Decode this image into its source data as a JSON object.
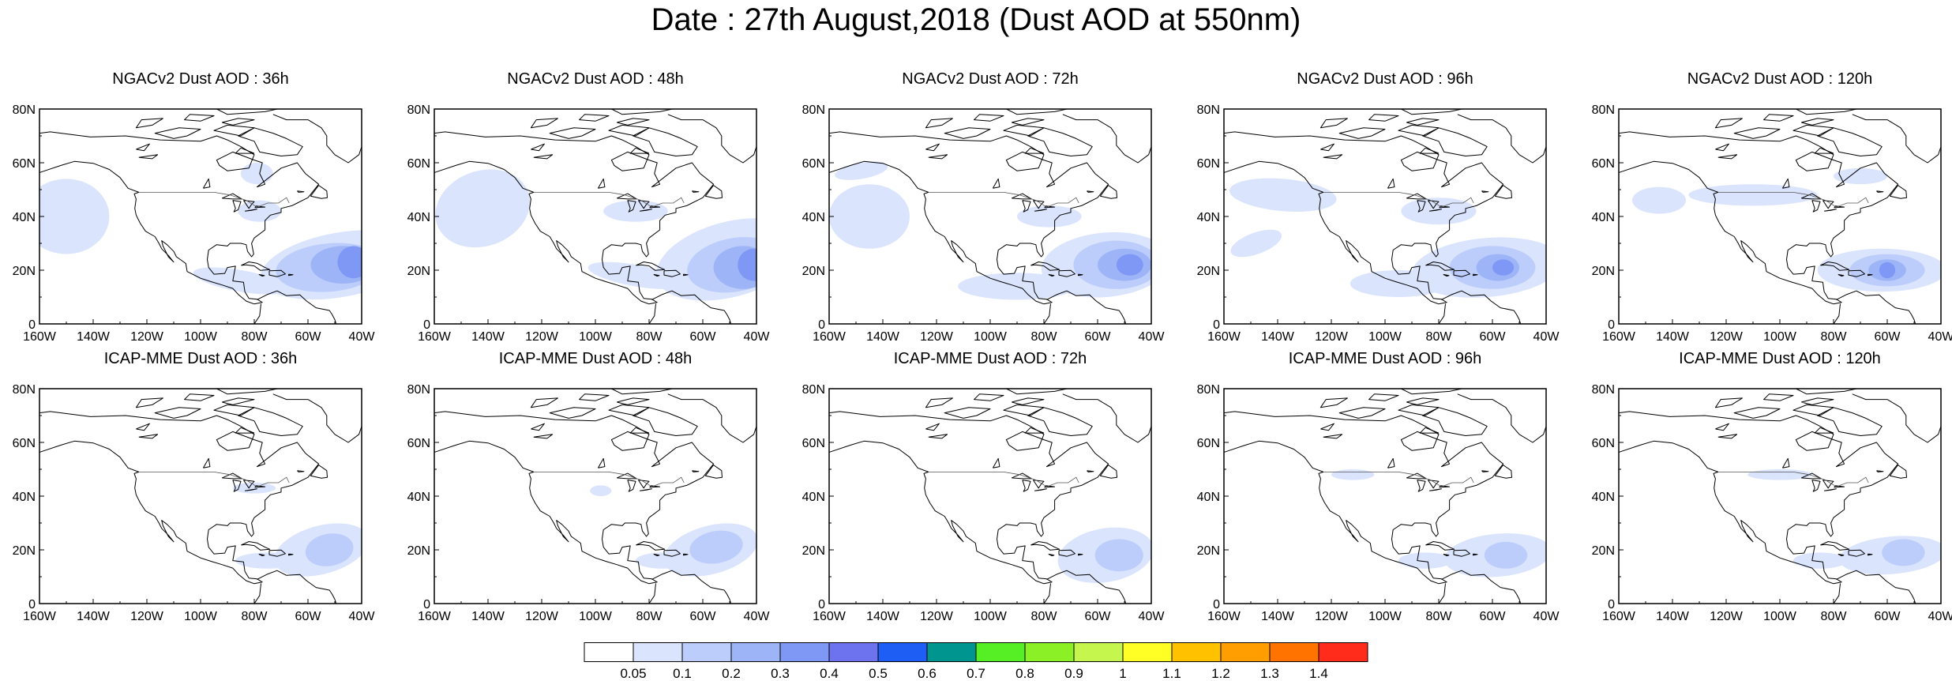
{
  "title": "Date : 27th August,2018 (Dust AOD at 550nm)",
  "axes": {
    "lat_ticks": [
      "80N",
      "60N",
      "40N",
      "20N",
      "0"
    ],
    "lon_ticks": [
      "160W",
      "140W",
      "120W",
      "100W",
      "80W",
      "60W",
      "40W"
    ],
    "lon_range": [
      -160,
      -40
    ],
    "lat_range": [
      0,
      80
    ]
  },
  "colorbar": {
    "colors": [
      "#ffffff",
      "#dbe4fd",
      "#bccdfb",
      "#9db5f7",
      "#8098f5",
      "#6d72ee",
      "#1f5ef5",
      "#00958f",
      "#56ee25",
      "#8cf026",
      "#c4f64e",
      "#ffff26",
      "#ffc100",
      "#ff9e00",
      "#ff7400",
      "#ff2b1b"
    ],
    "labels": [
      "0.05",
      "0.1",
      "0.2",
      "0.3",
      "0.4",
      "0.5",
      "0.6",
      "0.7",
      "0.8",
      "0.9",
      "1",
      "1.1",
      "1.2",
      "1.3",
      "1.4"
    ]
  },
  "panels": [
    {
      "title": "NGACv2 Dust AOD : 36h",
      "model": "NGACv2",
      "hour": 36,
      "plumes": [
        {
          "lon": -48,
          "lat": 22,
          "rx": 30,
          "ry": 12,
          "rot": 10,
          "level": 1
        },
        {
          "lon": -52,
          "lat": 21,
          "rx": 20,
          "ry": 9,
          "rot": 5,
          "level": 2
        },
        {
          "lon": -47,
          "lat": 22,
          "rx": 12,
          "ry": 7,
          "rot": 0,
          "level": 3
        },
        {
          "lon": -43,
          "lat": 23,
          "rx": 6,
          "ry": 6,
          "rot": 0,
          "level": 4
        },
        {
          "lon": -85,
          "lat": 16,
          "rx": 18,
          "ry": 4,
          "rot": -10,
          "level": 1
        },
        {
          "lon": -150,
          "lat": 40,
          "rx": 16,
          "ry": 14,
          "rot": 0,
          "level": 1
        },
        {
          "lon": -78,
          "lat": 42,
          "rx": 8,
          "ry": 4,
          "rot": 0,
          "level": 1
        },
        {
          "lon": -79,
          "lat": 56,
          "rx": 6,
          "ry": 4,
          "rot": 0,
          "level": 1
        }
      ]
    },
    {
      "title": "NGACv2 Dust AOD : 48h",
      "model": "NGACv2",
      "hour": 48,
      "plumes": [
        {
          "lon": -50,
          "lat": 24,
          "rx": 28,
          "ry": 14,
          "rot": 15,
          "level": 1
        },
        {
          "lon": -48,
          "lat": 22,
          "rx": 18,
          "ry": 10,
          "rot": 10,
          "level": 2
        },
        {
          "lon": -45,
          "lat": 21,
          "rx": 11,
          "ry": 8,
          "rot": 0,
          "level": 3
        },
        {
          "lon": -41,
          "lat": 22,
          "rx": 6,
          "ry": 6,
          "rot": 0,
          "level": 4
        },
        {
          "lon": -85,
          "lat": 18,
          "rx": 18,
          "ry": 4,
          "rot": -10,
          "level": 1
        },
        {
          "lon": -142,
          "lat": 43,
          "rx": 18,
          "ry": 14,
          "rot": 20,
          "level": 1
        },
        {
          "lon": -85,
          "lat": 42,
          "rx": 12,
          "ry": 4,
          "rot": 0,
          "level": 1
        }
      ]
    },
    {
      "title": "NGACv2 Dust AOD : 72h",
      "model": "NGACv2",
      "hour": 72,
      "plumes": [
        {
          "lon": -57,
          "lat": 22,
          "rx": 24,
          "ry": 12,
          "rot": 5,
          "level": 1
        },
        {
          "lon": -53,
          "lat": 22,
          "rx": 16,
          "ry": 9,
          "rot": 0,
          "level": 2
        },
        {
          "lon": -50,
          "lat": 22,
          "rx": 10,
          "ry": 6,
          "rot": 0,
          "level": 3
        },
        {
          "lon": -48,
          "lat": 22,
          "rx": 5,
          "ry": 4,
          "rot": 0,
          "level": 4
        },
        {
          "lon": -90,
          "lat": 14,
          "rx": 22,
          "ry": 5,
          "rot": 0,
          "level": 1
        },
        {
          "lon": -145,
          "lat": 40,
          "rx": 15,
          "ry": 12,
          "rot": 0,
          "level": 1
        },
        {
          "lon": -148,
          "lat": 57,
          "rx": 10,
          "ry": 3,
          "rot": 10,
          "level": 1
        },
        {
          "lon": -78,
          "lat": 40,
          "rx": 12,
          "ry": 4,
          "rot": 0,
          "level": 1
        }
      ]
    },
    {
      "title": "NGACv2 Dust AOD : 96h",
      "model": "NGACv2",
      "hour": 96,
      "plumes": [
        {
          "lon": -62,
          "lat": 21,
          "rx": 28,
          "ry": 11,
          "rot": 5,
          "level": 1
        },
        {
          "lon": -60,
          "lat": 21,
          "rx": 16,
          "ry": 8,
          "rot": 0,
          "level": 2
        },
        {
          "lon": -58,
          "lat": 21,
          "rx": 8,
          "ry": 5,
          "rot": 0,
          "level": 3
        },
        {
          "lon": -56,
          "lat": 21,
          "rx": 4,
          "ry": 3,
          "rot": 0,
          "level": 4
        },
        {
          "lon": -95,
          "lat": 15,
          "rx": 18,
          "ry": 5,
          "rot": 0,
          "level": 1
        },
        {
          "lon": -138,
          "lat": 48,
          "rx": 20,
          "ry": 6,
          "rot": -5,
          "level": 1
        },
        {
          "lon": -148,
          "lat": 30,
          "rx": 10,
          "ry": 4,
          "rot": 20,
          "level": 1
        },
        {
          "lon": -80,
          "lat": 42,
          "rx": 14,
          "ry": 5,
          "rot": 0,
          "level": 1
        }
      ]
    },
    {
      "title": "NGACv2 Dust AOD : 120h",
      "model": "NGACv2",
      "hour": 120,
      "plumes": [
        {
          "lon": -62,
          "lat": 20,
          "rx": 24,
          "ry": 8,
          "rot": 0,
          "level": 1
        },
        {
          "lon": -60,
          "lat": 20,
          "rx": 14,
          "ry": 6,
          "rot": 0,
          "level": 2
        },
        {
          "lon": -60,
          "lat": 20,
          "rx": 7,
          "ry": 4,
          "rot": 0,
          "level": 3
        },
        {
          "lon": -60,
          "lat": 20,
          "rx": 3,
          "ry": 3,
          "rot": 0,
          "level": 4
        },
        {
          "lon": -110,
          "lat": 48,
          "rx": 24,
          "ry": 4,
          "rot": 0,
          "level": 1
        },
        {
          "lon": -145,
          "lat": 46,
          "rx": 10,
          "ry": 5,
          "rot": 0,
          "level": 1
        },
        {
          "lon": -70,
          "lat": 55,
          "rx": 10,
          "ry": 3,
          "rot": 0,
          "level": 1
        }
      ]
    },
    {
      "title": "ICAP-MME Dust AOD : 36h",
      "model": "ICAP-MME",
      "hour": 36,
      "plumes": [
        {
          "lon": -55,
          "lat": 20,
          "rx": 18,
          "ry": 9,
          "rot": 15,
          "level": 1
        },
        {
          "lon": -52,
          "lat": 20,
          "rx": 9,
          "ry": 6,
          "rot": 10,
          "level": 2
        },
        {
          "lon": -75,
          "lat": 16,
          "rx": 12,
          "ry": 3,
          "rot": 0,
          "level": 1
        },
        {
          "lon": -80,
          "lat": 43,
          "rx": 8,
          "ry": 2,
          "rot": 0,
          "level": 1
        }
      ]
    },
    {
      "title": "ICAP-MME Dust AOD : 48h",
      "model": "ICAP-MME",
      "hour": 48,
      "plumes": [
        {
          "lon": -57,
          "lat": 20,
          "rx": 18,
          "ry": 9,
          "rot": 15,
          "level": 1
        },
        {
          "lon": -55,
          "lat": 21,
          "rx": 10,
          "ry": 6,
          "rot": 10,
          "level": 2
        },
        {
          "lon": -75,
          "lat": 16,
          "rx": 10,
          "ry": 3,
          "rot": 0,
          "level": 1
        },
        {
          "lon": -98,
          "lat": 42,
          "rx": 4,
          "ry": 2,
          "rot": 0,
          "level": 1
        }
      ]
    },
    {
      "title": "ICAP-MME Dust AOD : 72h",
      "model": "ICAP-MME",
      "hour": 72,
      "plumes": [
        {
          "lon": -57,
          "lat": 18,
          "rx": 18,
          "ry": 10,
          "rot": 10,
          "level": 1
        },
        {
          "lon": -52,
          "lat": 18,
          "rx": 9,
          "ry": 6,
          "rot": 0,
          "level": 2
        }
      ]
    },
    {
      "title": "ICAP-MME Dust AOD : 96h",
      "model": "ICAP-MME",
      "hour": 96,
      "plumes": [
        {
          "lon": -58,
          "lat": 18,
          "rx": 20,
          "ry": 8,
          "rot": 5,
          "level": 1
        },
        {
          "lon": -55,
          "lat": 18,
          "rx": 8,
          "ry": 5,
          "rot": 0,
          "level": 2
        },
        {
          "lon": -85,
          "lat": 16,
          "rx": 10,
          "ry": 3,
          "rot": 0,
          "level": 1
        },
        {
          "lon": -112,
          "lat": 48,
          "rx": 8,
          "ry": 2,
          "rot": 0,
          "level": 1
        }
      ]
    },
    {
      "title": "ICAP-MME Dust AOD : 120h",
      "model": "ICAP-MME",
      "hour": 120,
      "plumes": [
        {
          "lon": -58,
          "lat": 18,
          "rx": 20,
          "ry": 7,
          "rot": 5,
          "level": 1
        },
        {
          "lon": -54,
          "lat": 19,
          "rx": 8,
          "ry": 5,
          "rot": 0,
          "level": 2
        },
        {
          "lon": -85,
          "lat": 16,
          "rx": 10,
          "ry": 3,
          "rot": 0,
          "level": 1
        },
        {
          "lon": -100,
          "lat": 48,
          "rx": 12,
          "ry": 2,
          "rot": 0,
          "level": 1
        }
      ]
    }
  ]
}
